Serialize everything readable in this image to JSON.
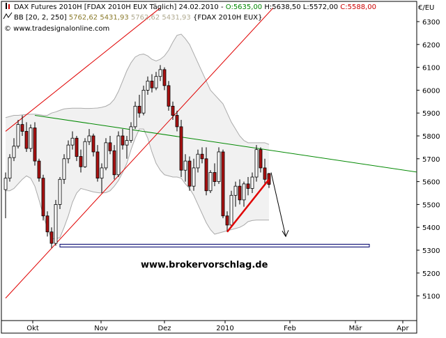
{
  "header": {
    "line1": {
      "name": "DAX Futures 2010H [FDAX 2010H EUX  Täglich] 24.02.2010 - ",
      "open": "O:5635,00",
      "hl": " H:5638,50 L:5572,00 ",
      "close": "C:5588,00"
    },
    "line2": {
      "prefix": "BB [20, 2, 250] ",
      "v1": "5762,62",
      "v2": "5431,93",
      "v3": "5762,62",
      "v4": "5431,93",
      "suffix": "{FDAX 2010H EUX}"
    },
    "line3": "© www.tradesignalonline.com"
  },
  "watermark": "www.brokervorschlag.de",
  "colors": {
    "up_candle": "#ffffff",
    "down_candle": "#aa1111",
    "channel": "#e00000",
    "trendline": "#008800",
    "band": "#aaaaaa",
    "support": "#000066",
    "open_value": "#008800",
    "close_value": "#cc0000",
    "band_values": "#a8a28a"
  },
  "chart_data": {
    "type": "candlestick",
    "title": "DAX Futures 2010H [FDAX 2010H EUX  Täglich] 24.02.2010",
    "y_unit": "€/EU",
    "ylim": [
      5040,
      6360
    ],
    "y_ticks": [
      "6300",
      "6200",
      "6100",
      "6000",
      "5900",
      "5800",
      "5700",
      "5600",
      "5500",
      "5400",
      "5300",
      "5200",
      "5100"
    ],
    "x_ticks": [
      "Okt",
      "Nov",
      "Dez",
      "2010",
      "Feb",
      "Mär",
      "Apr"
    ],
    "last_bar": {
      "date": "24.02.2010",
      "open": 5635.0,
      "high": 5638.5,
      "low": 5572.0,
      "close": 5588.0
    },
    "bollinger": {
      "period": 20,
      "stddev": 2,
      "bars": 250,
      "upper": 5762.62,
      "lower": 5431.93
    },
    "candles": [
      {
        "o": 5565,
        "h": 5640,
        "l": 5440,
        "c": 5615
      },
      {
        "o": 5615,
        "h": 5720,
        "l": 5600,
        "c": 5705
      },
      {
        "o": 5705,
        "h": 5790,
        "l": 5690,
        "c": 5755
      },
      {
        "o": 5755,
        "h": 5870,
        "l": 5745,
        "c": 5850
      },
      {
        "o": 5850,
        "h": 5890,
        "l": 5800,
        "c": 5820
      },
      {
        "o": 5820,
        "h": 5860,
        "l": 5730,
        "c": 5745
      },
      {
        "o": 5745,
        "h": 5850,
        "l": 5730,
        "c": 5835
      },
      {
        "o": 5835,
        "h": 5860,
        "l": 5670,
        "c": 5690
      },
      {
        "o": 5690,
        "h": 5700,
        "l": 5600,
        "c": 5615
      },
      {
        "o": 5615,
        "h": 5630,
        "l": 5430,
        "c": 5450
      },
      {
        "o": 5450,
        "h": 5470,
        "l": 5360,
        "c": 5380
      },
      {
        "o": 5380,
        "h": 5400,
        "l": 5310,
        "c": 5330
      },
      {
        "o": 5330,
        "h": 5520,
        "l": 5320,
        "c": 5500
      },
      {
        "o": 5500,
        "h": 5620,
        "l": 5480,
        "c": 5610
      },
      {
        "o": 5610,
        "h": 5720,
        "l": 5590,
        "c": 5700
      },
      {
        "o": 5700,
        "h": 5780,
        "l": 5680,
        "c": 5760
      },
      {
        "o": 5760,
        "h": 5820,
        "l": 5740,
        "c": 5790
      },
      {
        "o": 5790,
        "h": 5800,
        "l": 5690,
        "c": 5710
      },
      {
        "o": 5710,
        "h": 5740,
        "l": 5640,
        "c": 5665
      },
      {
        "o": 5665,
        "h": 5790,
        "l": 5660,
        "c": 5775
      },
      {
        "o": 5775,
        "h": 5830,
        "l": 5760,
        "c": 5800
      },
      {
        "o": 5800,
        "h": 5810,
        "l": 5710,
        "c": 5730
      },
      {
        "o": 5730,
        "h": 5760,
        "l": 5600,
        "c": 5615
      },
      {
        "o": 5615,
        "h": 5680,
        "l": 5550,
        "c": 5660
      },
      {
        "o": 5660,
        "h": 5790,
        "l": 5650,
        "c": 5770
      },
      {
        "o": 5770,
        "h": 5800,
        "l": 5720,
        "c": 5735
      },
      {
        "o": 5735,
        "h": 5760,
        "l": 5610,
        "c": 5630
      },
      {
        "o": 5630,
        "h": 5820,
        "l": 5620,
        "c": 5800
      },
      {
        "o": 5800,
        "h": 5830,
        "l": 5740,
        "c": 5760
      },
      {
        "o": 5760,
        "h": 5800,
        "l": 5700,
        "c": 5780
      },
      {
        "o": 5780,
        "h": 5860,
        "l": 5770,
        "c": 5840
      },
      {
        "o": 5840,
        "h": 5950,
        "l": 5830,
        "c": 5930
      },
      {
        "o": 5930,
        "h": 5980,
        "l": 5880,
        "c": 5900
      },
      {
        "o": 5900,
        "h": 6020,
        "l": 5890,
        "c": 6000
      },
      {
        "o": 6000,
        "h": 6060,
        "l": 5980,
        "c": 6040
      },
      {
        "o": 6040,
        "h": 6070,
        "l": 5990,
        "c": 6010
      },
      {
        "o": 6010,
        "h": 6080,
        "l": 6000,
        "c": 6060
      },
      {
        "o": 6060,
        "h": 6110,
        "l": 6040,
        "c": 6090
      },
      {
        "o": 6090,
        "h": 6100,
        "l": 6000,
        "c": 6020
      },
      {
        "o": 6020,
        "h": 6040,
        "l": 5910,
        "c": 5930
      },
      {
        "o": 5930,
        "h": 5950,
        "l": 5870,
        "c": 5890
      },
      {
        "o": 5890,
        "h": 5910,
        "l": 5820,
        "c": 5840
      },
      {
        "o": 5840,
        "h": 5870,
        "l": 5620,
        "c": 5650
      },
      {
        "o": 5650,
        "h": 5720,
        "l": 5600,
        "c": 5690
      },
      {
        "o": 5690,
        "h": 5710,
        "l": 5560,
        "c": 5580
      },
      {
        "o": 5580,
        "h": 5700,
        "l": 5560,
        "c": 5660
      },
      {
        "o": 5660,
        "h": 5740,
        "l": 5640,
        "c": 5720
      },
      {
        "o": 5720,
        "h": 5750,
        "l": 5680,
        "c": 5700
      },
      {
        "o": 5700,
        "h": 5750,
        "l": 5540,
        "c": 5560
      },
      {
        "o": 5560,
        "h": 5650,
        "l": 5550,
        "c": 5640
      },
      {
        "o": 5640,
        "h": 5680,
        "l": 5580,
        "c": 5600
      },
      {
        "o": 5600,
        "h": 5750,
        "l": 5590,
        "c": 5730
      },
      {
        "o": 5730,
        "h": 5740,
        "l": 5440,
        "c": 5450
      },
      {
        "o": 5450,
        "h": 5470,
        "l": 5380,
        "c": 5410
      },
      {
        "o": 5410,
        "h": 5560,
        "l": 5400,
        "c": 5540
      },
      {
        "o": 5540,
        "h": 5600,
        "l": 5490,
        "c": 5580
      },
      {
        "o": 5580,
        "h": 5610,
        "l": 5500,
        "c": 5520
      },
      {
        "o": 5520,
        "h": 5600,
        "l": 5490,
        "c": 5590
      },
      {
        "o": 5590,
        "h": 5620,
        "l": 5540,
        "c": 5570
      },
      {
        "o": 5570,
        "h": 5640,
        "l": 5550,
        "c": 5620
      },
      {
        "o": 5620,
        "h": 5760,
        "l": 5600,
        "c": 5740
      },
      {
        "o": 5740,
        "h": 5750,
        "l": 5640,
        "c": 5660
      },
      {
        "o": 5660,
        "h": 5700,
        "l": 5590,
        "c": 5610
      },
      {
        "o": 5635,
        "h": 5638.5,
        "l": 5572,
        "c": 5588
      }
    ],
    "bollinger_upper": [
      5880,
      5885,
      5890,
      5890,
      5892,
      5894,
      5895,
      5895,
      5893,
      5890,
      5890,
      5900,
      5905,
      5912,
      5918,
      5920,
      5921,
      5921,
      5921,
      5920,
      5920,
      5921,
      5922,
      5925,
      5930,
      5940,
      5960,
      5995,
      6040,
      6085,
      6120,
      6145,
      6155,
      6158,
      6150,
      6135,
      6128,
      6135,
      6150,
      6175,
      6210,
      6240,
      6245,
      6225,
      6200,
      6160,
      6120,
      6080,
      6040,
      6000,
      5980,
      5960,
      5940,
      5900,
      5860,
      5830,
      5800,
      5780,
      5770,
      5770,
      5770,
      5770,
      5770,
      5762.62
    ],
    "bollinger_lower": [
      5560,
      5560,
      5570,
      5590,
      5610,
      5625,
      5615,
      5580,
      5520,
      5455,
      5395,
      5350,
      5350,
      5355,
      5400,
      5450,
      5510,
      5550,
      5570,
      5565,
      5560,
      5555,
      5552,
      5550,
      5552,
      5560,
      5580,
      5605,
      5640,
      5680,
      5740,
      5790,
      5830,
      5830,
      5790,
      5730,
      5680,
      5650,
      5630,
      5625,
      5620,
      5620,
      5615,
      5590,
      5570,
      5540,
      5500,
      5460,
      5420,
      5390,
      5370,
      5375,
      5380,
      5385,
      5390,
      5395,
      5400,
      5410,
      5425,
      5430,
      5432,
      5432,
      5432,
      5431.93
    ],
    "green_trendline": {
      "from": {
        "bar": 7,
        "value": 5890
      },
      "to": {
        "bar": 99,
        "value": 5640
      }
    },
    "red_channel_lower": {
      "from": {
        "bar": 0,
        "value": 5090
      },
      "to": {
        "bar": 64,
        "value": 6360
      }
    },
    "red_channel_upper": {
      "from": {
        "bar": 0,
        "value": 5820
      },
      "to": {
        "bar": 37,
        "value": 6360
      }
    },
    "red_support_line": {
      "from": {
        "bar": 53,
        "value": 5380
      },
      "to": {
        "bar": 63,
        "value": 5610
      }
    },
    "support_box": {
      "from_bar": 13,
      "to_bar": 87,
      "value": 5320
    },
    "projection_arrow": {
      "from": {
        "bar": 63,
        "value": 5640
      },
      "to": {
        "bar": 67,
        "value": 5360
      }
    }
  }
}
